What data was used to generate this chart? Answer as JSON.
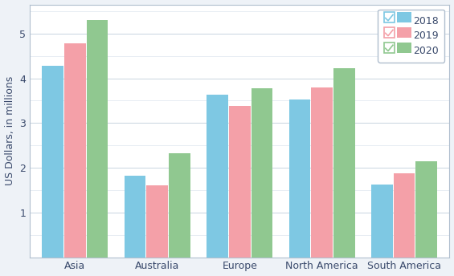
{
  "categories": [
    "Asia",
    "Australia",
    "Europe",
    "North America",
    "South America"
  ],
  "series": {
    "2018": [
      4.28,
      1.83,
      3.63,
      3.52,
      1.63
    ],
    "2019": [
      4.78,
      1.6,
      3.38,
      3.8,
      1.87
    ],
    "2020": [
      5.3,
      2.33,
      3.77,
      4.22,
      2.15
    ]
  },
  "colors": {
    "2018": "#7ec8e3",
    "2019": "#f4a0a8",
    "2020": "#90c890"
  },
  "checkbox_colors": {
    "2018": "#7ec8e3",
    "2019": "#f4a0a8",
    "2020": "#90c890"
  },
  "ylabel": "US Dollars, in millions",
  "ylim": [
    0,
    5.65
  ],
  "yticks": [
    1.0,
    2.0,
    3.0,
    4.0,
    5.0
  ],
  "bar_width": 0.26,
  "bar_gap": 0.01,
  "background_color": "#eef2f7",
  "plot_bg": "#ffffff",
  "grid_color": "#c8d4e0",
  "grid_minor_color": "#dde6ee",
  "legend_labels": [
    "2018",
    "2019",
    "2020"
  ],
  "border_color": "#b0bece",
  "text_color": "#3a4a6c",
  "tick_fontsize": 9,
  "label_fontsize": 9
}
